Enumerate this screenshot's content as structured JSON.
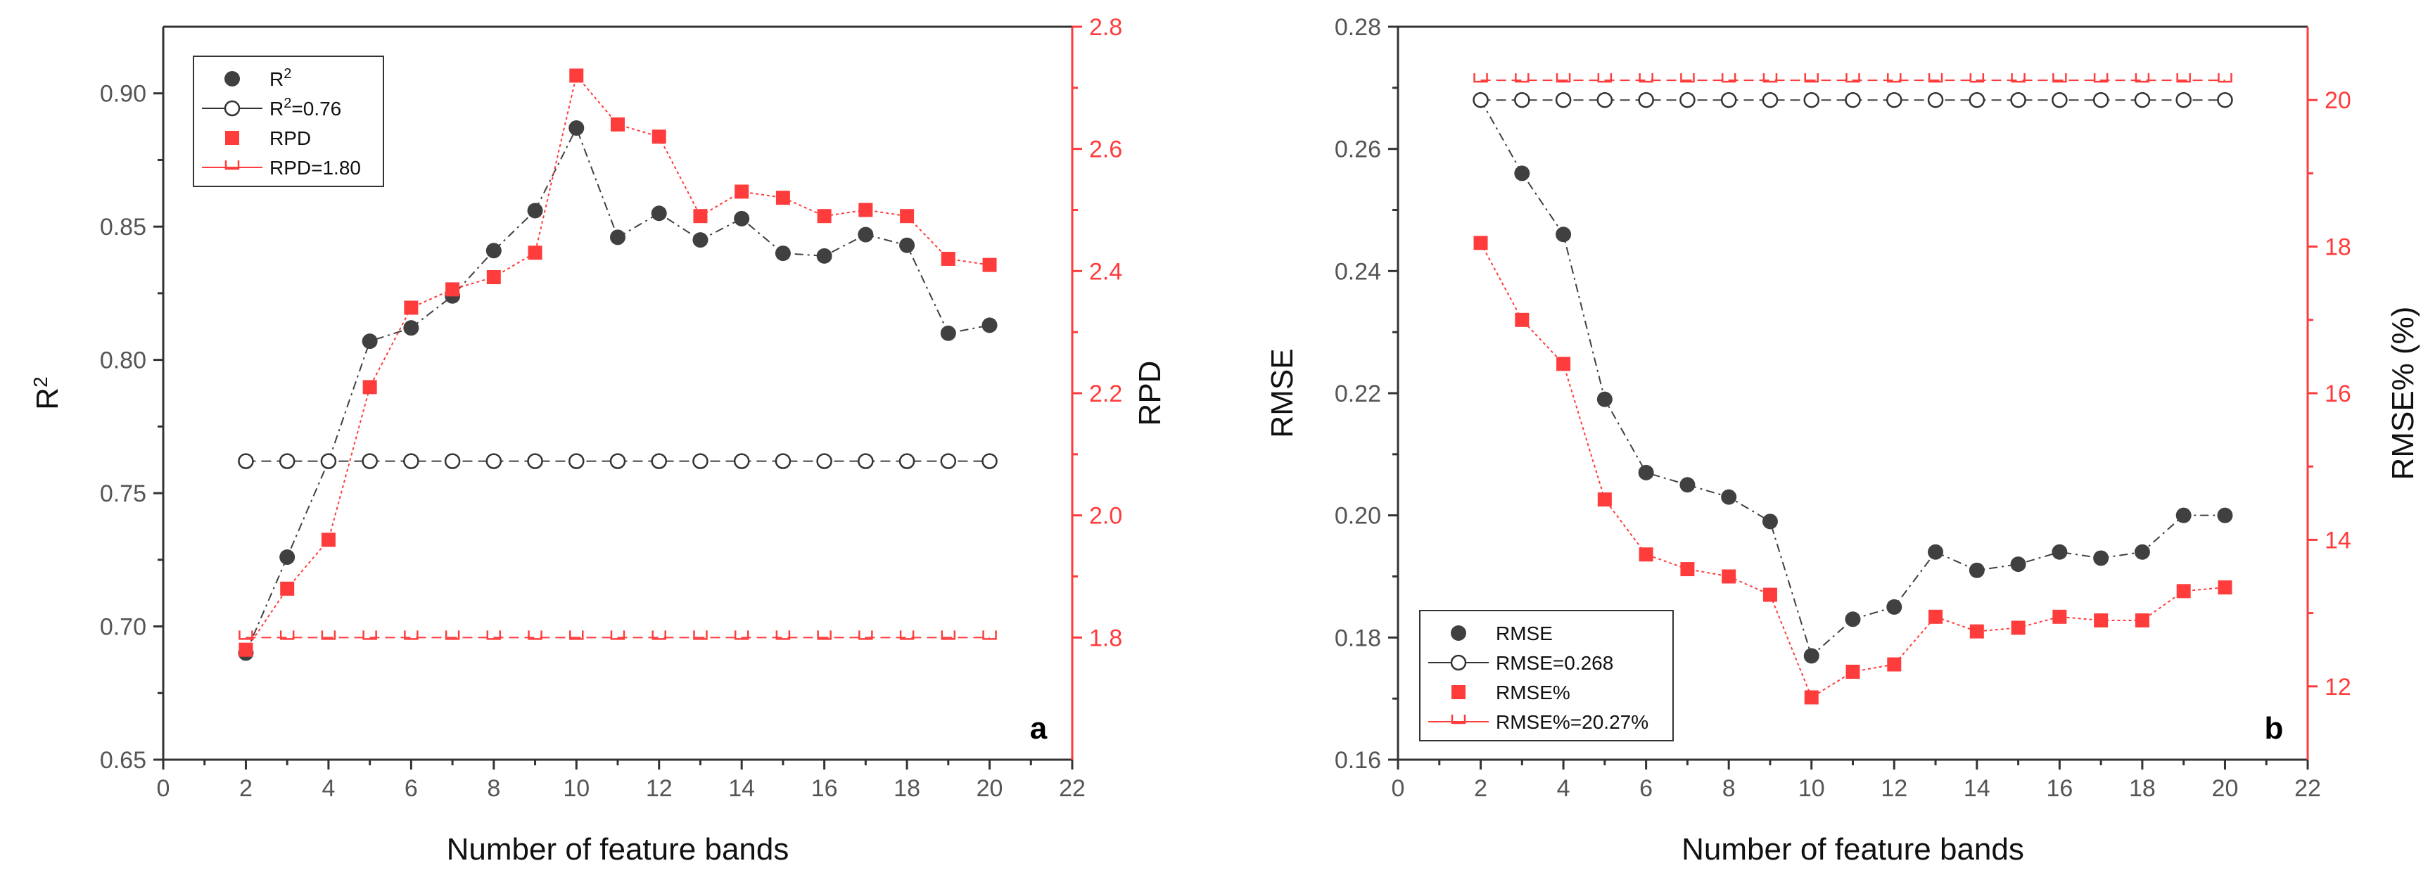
{
  "colors": {
    "left_series": "#404040",
    "right_series": "#ff3c3c",
    "axis": "#333333",
    "right_axis": "#ff3c3c"
  },
  "chart_data": [
    {
      "type": "line",
      "panel_label": "a",
      "xlabel": "Number of feature bands",
      "ylabel": "R",
      "ylabel_sup": "2",
      "y2label": "RPD",
      "xlim": [
        0,
        22
      ],
      "ylim": [
        0.65,
        0.925
      ],
      "y2lim": [
        1.6,
        2.8
      ],
      "x_ticks": [
        0,
        2,
        4,
        6,
        8,
        10,
        12,
        14,
        16,
        18,
        20,
        22
      ],
      "y_ticks": [
        "0.65",
        "0.70",
        "0.75",
        "0.80",
        "0.85",
        "0.90"
      ],
      "y2_ticks": [
        "1.8",
        "2.0",
        "2.2",
        "2.4",
        "2.6",
        "2.8"
      ],
      "x": [
        2,
        3,
        4,
        5,
        6,
        7,
        8,
        9,
        10,
        11,
        12,
        13,
        14,
        15,
        16,
        17,
        18,
        19,
        20
      ],
      "legend_position": "top-left",
      "series": [
        {
          "name": "R²",
          "legend": "R",
          "legend_sup": "2",
          "axis": "left",
          "style": "filled-circle-line",
          "values": [
            0.69,
            0.726,
            0.762,
            0.807,
            0.812,
            0.824,
            0.841,
            0.856,
            0.887,
            0.846,
            0.855,
            0.845,
            0.853,
            0.84,
            0.839,
            0.847,
            0.843,
            0.81,
            0.813
          ]
        },
        {
          "name": "R²=0.76",
          "legend": "R",
          "legend_sup": "2",
          "legend_suffix": "=0.76",
          "axis": "left",
          "style": "open-circle-dash",
          "value": 0.762
        },
        {
          "name": "RPD",
          "legend": "RPD",
          "axis": "right",
          "style": "filled-square-dot",
          "values": [
            1.78,
            1.88,
            1.96,
            2.21,
            2.34,
            2.37,
            2.39,
            2.43,
            2.72,
            2.64,
            2.62,
            2.49,
            2.53,
            2.52,
            2.49,
            2.5,
            2.49,
            2.42,
            2.41
          ]
        },
        {
          "name": "RPD=1.80",
          "legend": "RPD=1.80",
          "axis": "right",
          "style": "open-square-dash",
          "value": 1.8
        }
      ]
    },
    {
      "type": "line",
      "panel_label": "b",
      "xlabel": "Number of feature bands",
      "ylabel": "RMSE",
      "y2label": "RMSE% (%)",
      "xlim": [
        0,
        22
      ],
      "ylim": [
        0.16,
        0.28
      ],
      "y2lim": [
        11,
        21
      ],
      "x_ticks": [
        0,
        2,
        4,
        6,
        8,
        10,
        12,
        14,
        16,
        18,
        20,
        22
      ],
      "y_ticks": [
        "0.16",
        "0.18",
        "0.20",
        "0.22",
        "0.24",
        "0.26",
        "0.28"
      ],
      "y2_ticks": [
        "12",
        "14",
        "16",
        "18",
        "20"
      ],
      "x": [
        2,
        3,
        4,
        5,
        6,
        7,
        8,
        9,
        10,
        11,
        12,
        13,
        14,
        15,
        16,
        17,
        18,
        19,
        20
      ],
      "legend_position": "bottom-left",
      "series": [
        {
          "name": "RMSE",
          "legend": "RMSE",
          "axis": "left",
          "style": "filled-circle-line",
          "values": [
            0.268,
            0.256,
            0.246,
            0.219,
            0.207,
            0.205,
            0.203,
            0.199,
            0.177,
            0.183,
            0.185,
            0.194,
            0.191,
            0.192,
            0.194,
            0.193,
            0.194,
            0.2,
            0.2
          ]
        },
        {
          "name": "RMSE=0.268",
          "legend": "RMSE=0.268",
          "axis": "left",
          "style": "open-circle-dash",
          "value": 0.268
        },
        {
          "name": "RMSE%",
          "legend": "RMSE%",
          "axis": "right",
          "style": "filled-square-dot",
          "values": [
            18.05,
            17.0,
            16.4,
            14.55,
            13.8,
            13.6,
            13.5,
            13.25,
            11.85,
            12.2,
            12.3,
            12.95,
            12.75,
            12.8,
            12.95,
            12.9,
            12.9,
            13.3,
            13.35
          ]
        },
        {
          "name": "RMSE%=20.27%",
          "legend": "RMSE%=20.27%",
          "axis": "right",
          "style": "open-square-dash",
          "value": 20.27
        }
      ]
    }
  ]
}
